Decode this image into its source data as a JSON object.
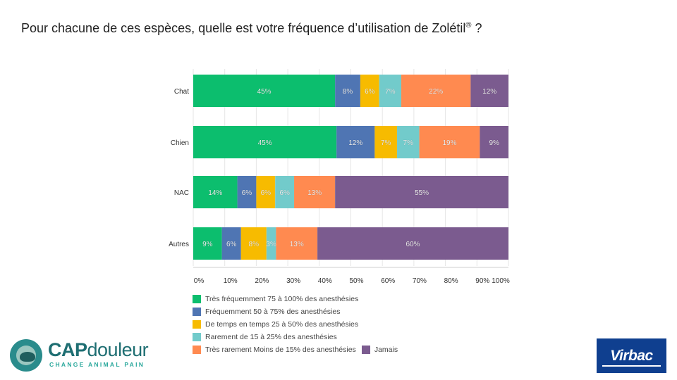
{
  "title": {
    "text": "Pour chacune de ces espèces, quelle est votre fréquence d’utilisation de Zolétil",
    "suffix": " ?",
    "reg": "®"
  },
  "chart_data": {
    "type": "bar",
    "orientation": "horizontal",
    "stacked": true,
    "categories": [
      "Chat",
      "Chien",
      "NAC",
      "Autres"
    ],
    "xlim": [
      0,
      100
    ],
    "xticks": [
      "0%",
      "10%",
      "20%",
      "30%",
      "40%",
      "50%",
      "60%",
      "70%",
      "80%",
      "90%",
      "100%"
    ],
    "legend_position": "bottom",
    "series": [
      {
        "name": "Très fréquemment 75 à 100% des anesthésies",
        "color": "#0cbe6e",
        "values": [
          45,
          45,
          14,
          9
        ]
      },
      {
        "name": "Fréquemment 50 à 75% des anesthésies",
        "color": "#4f75b3",
        "values": [
          8,
          12,
          6,
          6
        ]
      },
      {
        "name": "De temps en temps 25 à 50% des anesthésies",
        "color": "#f7bb00",
        "values": [
          6,
          7,
          6,
          8
        ]
      },
      {
        "name": "Rarement de 15 à 25% des anesthésies",
        "color": "#72cbcb",
        "values": [
          7,
          7,
          6,
          3
        ]
      },
      {
        "name": "Très rarement Moins de 15% des anesthésies",
        "color": "#ff8a50",
        "values": [
          22,
          19,
          13,
          13
        ]
      },
      {
        "name": "Jamais",
        "color": "#7b5b8f",
        "values": [
          12,
          9,
          55,
          60
        ]
      }
    ]
  },
  "logos": {
    "cap": {
      "main": "CAP",
      "second": "douleur",
      "tagline": "CHANGE ANIMAL PAIN"
    },
    "virbac": {
      "text": "Virbac"
    }
  }
}
